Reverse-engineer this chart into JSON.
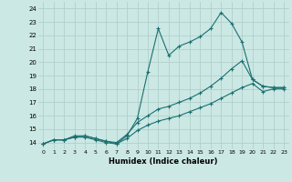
{
  "xlabel": "Humidex (Indice chaleur)",
  "bg_color": "#cce8e4",
  "grid_color": "#b0d0cc",
  "line_color": "#1a7070",
  "xlim": [
    -0.5,
    23.5
  ],
  "ylim": [
    13.5,
    24.5
  ],
  "yticks": [
    14,
    15,
    16,
    17,
    18,
    19,
    20,
    21,
    22,
    23,
    24
  ],
  "xticks": [
    0,
    1,
    2,
    3,
    4,
    5,
    6,
    7,
    8,
    9,
    10,
    11,
    12,
    13,
    14,
    15,
    16,
    17,
    18,
    19,
    20,
    21,
    22,
    23
  ],
  "line1_x": [
    0,
    1,
    2,
    3,
    4,
    5,
    6,
    7,
    8,
    9,
    10,
    11,
    12,
    13,
    14,
    15,
    16,
    17,
    18,
    19,
    20,
    21,
    22,
    23
  ],
  "line1_y": [
    13.9,
    14.2,
    14.2,
    14.4,
    14.5,
    14.3,
    14.1,
    13.9,
    14.5,
    15.8,
    19.3,
    22.5,
    20.5,
    21.2,
    21.5,
    21.9,
    22.5,
    23.7,
    22.9,
    21.5,
    18.7,
    18.2,
    18.1,
    18.1
  ],
  "line2_x": [
    0,
    1,
    2,
    3,
    4,
    5,
    6,
    7,
    8,
    9,
    10,
    11,
    12,
    13,
    14,
    15,
    16,
    17,
    18,
    19,
    20,
    21,
    22,
    23
  ],
  "line2_y": [
    13.9,
    14.2,
    14.2,
    14.5,
    14.5,
    14.3,
    14.1,
    14.0,
    14.6,
    15.5,
    16.0,
    16.5,
    16.7,
    17.0,
    17.3,
    17.7,
    18.2,
    18.8,
    19.5,
    20.1,
    18.7,
    18.2,
    18.1,
    18.1
  ],
  "line3_x": [
    0,
    1,
    2,
    3,
    4,
    5,
    6,
    7,
    8,
    9,
    10,
    11,
    12,
    13,
    14,
    15,
    16,
    17,
    18,
    19,
    20,
    21,
    22,
    23
  ],
  "line3_y": [
    13.9,
    14.2,
    14.2,
    14.4,
    14.4,
    14.2,
    14.0,
    13.9,
    14.3,
    14.9,
    15.3,
    15.6,
    15.8,
    16.0,
    16.3,
    16.6,
    16.9,
    17.3,
    17.7,
    18.1,
    18.4,
    17.8,
    18.0,
    18.0
  ]
}
